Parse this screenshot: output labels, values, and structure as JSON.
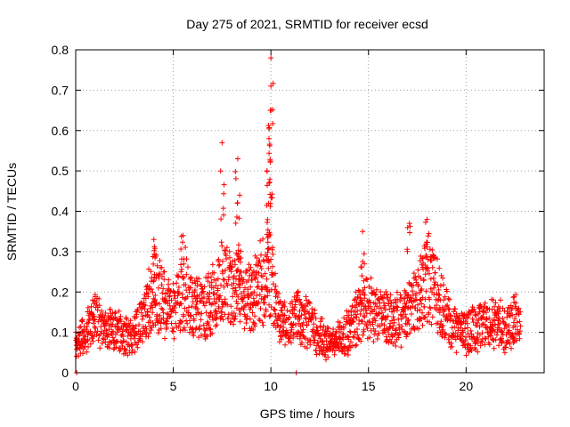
{
  "chart_data": {
    "type": "scatter",
    "title": "Day 275 of 2021, SRMTID for receiver ecsd",
    "xlabel": "GPS time / hours",
    "ylabel": "SRMTID / TECUs",
    "xlim": [
      0,
      24
    ],
    "ylim": [
      0,
      0.8
    ],
    "xticks": [
      0,
      5,
      10,
      15,
      20
    ],
    "yticks": [
      0,
      0.1,
      0.2,
      0.3,
      0.4,
      0.5,
      0.6,
      0.7,
      0.8
    ],
    "xtick_labels": [
      "0",
      "5",
      "10",
      "15",
      "20"
    ],
    "ytick_labels": [
      "0",
      "0.1",
      "0.2",
      "0.3",
      "0.4",
      "0.5",
      "0.6",
      "0.7",
      "0.8"
    ],
    "grid": true,
    "marker": "+",
    "color": "#ff0000",
    "series": [
      {
        "name": "SRMTID",
        "x_range": [
          0.0,
          22.8
        ],
        "sample_interval_hours": 0.0167,
        "baseline_profile": [
          [
            0.0,
            0.07
          ],
          [
            0.5,
            0.1
          ],
          [
            1.0,
            0.14
          ],
          [
            1.5,
            0.11
          ],
          [
            2.0,
            0.1
          ],
          [
            2.5,
            0.09
          ],
          [
            3.0,
            0.1
          ],
          [
            3.5,
            0.14
          ],
          [
            4.0,
            0.2
          ],
          [
            4.5,
            0.18
          ],
          [
            5.0,
            0.15
          ],
          [
            5.5,
            0.2
          ],
          [
            6.0,
            0.16
          ],
          [
            6.5,
            0.15
          ],
          [
            7.0,
            0.18
          ],
          [
            7.5,
            0.24
          ],
          [
            8.0,
            0.2
          ],
          [
            8.5,
            0.21
          ],
          [
            9.0,
            0.18
          ],
          [
            9.5,
            0.22
          ],
          [
            10.0,
            0.25
          ],
          [
            10.3,
            0.15
          ],
          [
            10.8,
            0.11
          ],
          [
            11.3,
            0.14
          ],
          [
            12.0,
            0.12
          ],
          [
            12.5,
            0.09
          ],
          [
            13.0,
            0.07
          ],
          [
            13.5,
            0.09
          ],
          [
            14.0,
            0.1
          ],
          [
            14.5,
            0.15
          ],
          [
            15.0,
            0.17
          ],
          [
            15.5,
            0.14
          ],
          [
            16.0,
            0.14
          ],
          [
            16.5,
            0.13
          ],
          [
            17.0,
            0.15
          ],
          [
            17.5,
            0.19
          ],
          [
            18.0,
            0.23
          ],
          [
            18.5,
            0.2
          ],
          [
            19.0,
            0.14
          ],
          [
            19.5,
            0.1
          ],
          [
            20.0,
            0.1
          ],
          [
            20.5,
            0.11
          ],
          [
            21.0,
            0.12
          ],
          [
            21.5,
            0.12
          ],
          [
            22.0,
            0.11
          ],
          [
            22.8,
            0.14
          ]
        ],
        "peaks": [
          {
            "x": 7.5,
            "y": 0.57
          },
          {
            "x": 8.3,
            "y": 0.53
          },
          {
            "x": 9.8,
            "y": 0.5
          },
          {
            "x": 10.0,
            "y": 0.78
          },
          {
            "x": 10.0,
            "y": 0.71
          },
          {
            "x": 10.0,
            "y": 0.65
          },
          {
            "x": 9.9,
            "y": 0.58
          },
          {
            "x": 8.4,
            "y": 0.44
          },
          {
            "x": 9.9,
            "y": 0.47
          },
          {
            "x": 4.0,
            "y": 0.33
          },
          {
            "x": 5.5,
            "y": 0.34
          },
          {
            "x": 14.7,
            "y": 0.35
          },
          {
            "x": 17.1,
            "y": 0.37
          },
          {
            "x": 18.0,
            "y": 0.38
          }
        ],
        "zero_markers": [
          {
            "x": 0.05,
            "y": 0.0
          },
          {
            "x": 11.3,
            "y": 0.0
          }
        ]
      }
    ]
  }
}
